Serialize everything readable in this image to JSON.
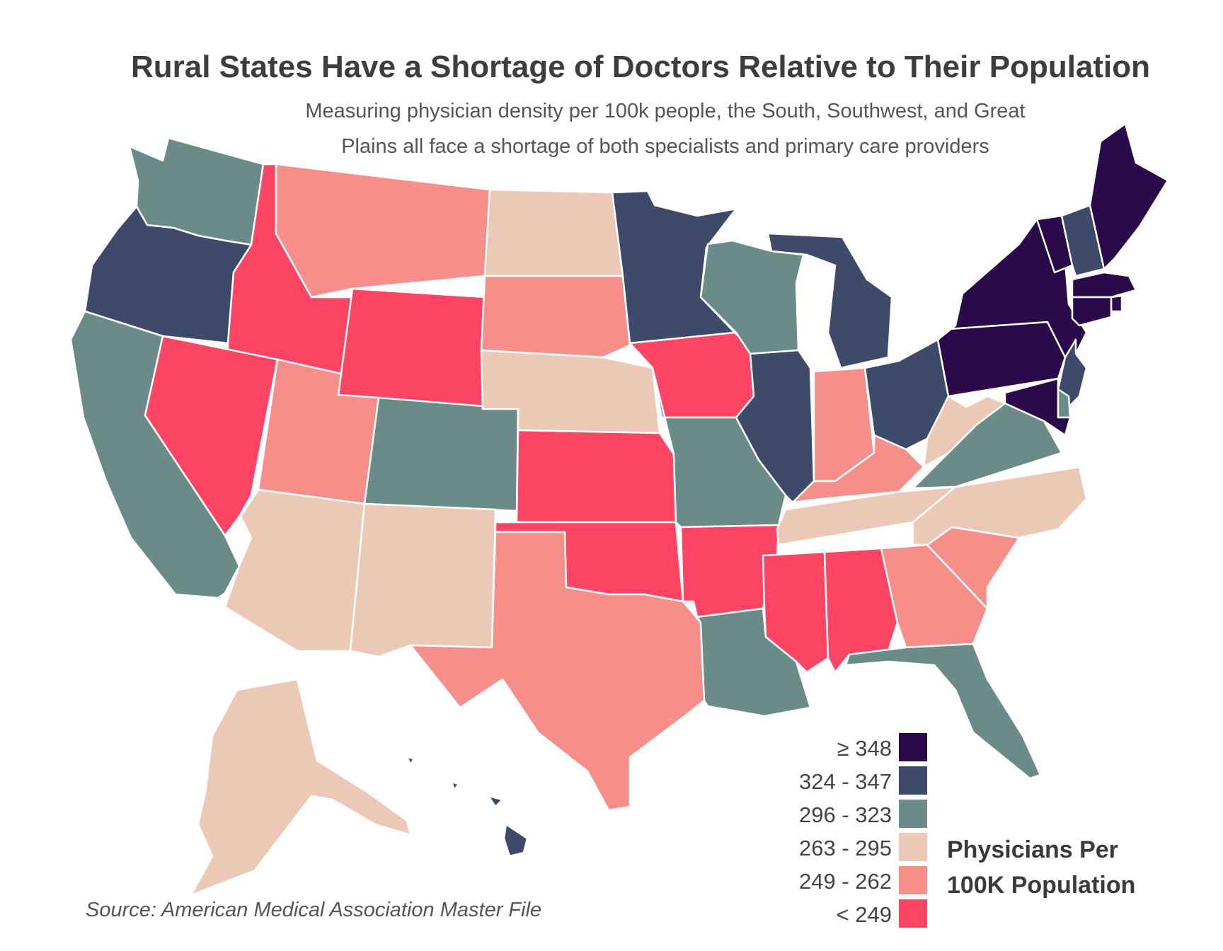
{
  "title": "Rural States Have a Shortage of Doctors Relative to Their Population",
  "subtitle_line1": "Measuring physician density per 100k people, the South, Southwest, and Great",
  "subtitle_line2": "Plains all face a shortage of both specialists and primary care providers",
  "source": "Source: American Medical Association Master File",
  "legend": {
    "title_line1": "Physicians Per",
    "title_line2": "100K Population",
    "bins": [
      {
        "label": "≥ 348",
        "color": "#2a0a4a"
      },
      {
        "label": "324 - 347",
        "color": "#3e4a6a"
      },
      {
        "label": "296 - 323",
        "color": "#6a8b88"
      },
      {
        "label": "263 - 295",
        "color": "#ecc9b6"
      },
      {
        "label": "249 - 262",
        "color": "#f68e8a"
      },
      {
        "label": "< 249",
        "color": "#ff4563"
      }
    ]
  },
  "states": [
    {
      "name": "Washington",
      "bin": 2
    },
    {
      "name": "Oregon",
      "bin": 1
    },
    {
      "name": "California",
      "bin": 2
    },
    {
      "name": "Idaho",
      "bin": 5
    },
    {
      "name": "Nevada",
      "bin": 5
    },
    {
      "name": "Montana",
      "bin": 4
    },
    {
      "name": "Wyoming",
      "bin": 5
    },
    {
      "name": "Utah",
      "bin": 4
    },
    {
      "name": "Arizona",
      "bin": 3
    },
    {
      "name": "Colorado",
      "bin": 2
    },
    {
      "name": "New Mexico",
      "bin": 3
    },
    {
      "name": "North Dakota",
      "bin": 3
    },
    {
      "name": "South Dakota",
      "bin": 4
    },
    {
      "name": "Nebraska",
      "bin": 3
    },
    {
      "name": "Kansas",
      "bin": 5
    },
    {
      "name": "Oklahoma",
      "bin": 5
    },
    {
      "name": "Texas",
      "bin": 4
    },
    {
      "name": "Minnesota",
      "bin": 1
    },
    {
      "name": "Iowa",
      "bin": 5
    },
    {
      "name": "Missouri",
      "bin": 2
    },
    {
      "name": "Arkansas",
      "bin": 5
    },
    {
      "name": "Louisiana",
      "bin": 2
    },
    {
      "name": "Wisconsin",
      "bin": 2
    },
    {
      "name": "Illinois",
      "bin": 1
    },
    {
      "name": "Michigan",
      "bin": 1
    },
    {
      "name": "Indiana",
      "bin": 4
    },
    {
      "name": "Ohio",
      "bin": 1
    },
    {
      "name": "Kentucky",
      "bin": 4
    },
    {
      "name": "Tennessee",
      "bin": 3
    },
    {
      "name": "Mississippi",
      "bin": 5
    },
    {
      "name": "Alabama",
      "bin": 5
    },
    {
      "name": "Georgia",
      "bin": 4
    },
    {
      "name": "Florida",
      "bin": 2
    },
    {
      "name": "South Carolina",
      "bin": 4
    },
    {
      "name": "North Carolina",
      "bin": 3
    },
    {
      "name": "Virginia",
      "bin": 2
    },
    {
      "name": "West Virginia",
      "bin": 3
    },
    {
      "name": "Pennsylvania",
      "bin": 0
    },
    {
      "name": "New York",
      "bin": 0
    },
    {
      "name": "Vermont",
      "bin": 0
    },
    {
      "name": "New Hampshire",
      "bin": 1
    },
    {
      "name": "Maine",
      "bin": 0
    },
    {
      "name": "Massachusetts",
      "bin": 0
    },
    {
      "name": "Rhode Island",
      "bin": 0
    },
    {
      "name": "Connecticut",
      "bin": 0
    },
    {
      "name": "New Jersey",
      "bin": 1
    },
    {
      "name": "Delaware",
      "bin": 2
    },
    {
      "name": "Maryland",
      "bin": 0
    },
    {
      "name": "Alaska",
      "bin": 3
    },
    {
      "name": "Hawaii",
      "bin": 1
    }
  ]
}
